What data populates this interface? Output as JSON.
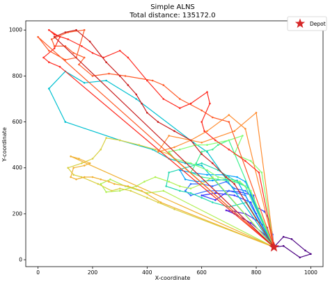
{
  "chart_data": {
    "type": "line",
    "title": "Simple ALNS",
    "subtitle": "Total distance: 135172.0",
    "xlabel": "X-coordinate",
    "ylabel": "Y-coordinate",
    "xlim": [
      -45,
      1045
    ],
    "ylim": [
      -30,
      1040
    ],
    "xticks": [
      0,
      200,
      400,
      600,
      800,
      1000
    ],
    "yticks": [
      0,
      200,
      400,
      600,
      800,
      1000
    ],
    "grid": false,
    "legend": {
      "placement": "top-right",
      "entries": [
        {
          "label": "Depot",
          "marker": "star",
          "color": "#d62728"
        }
      ]
    },
    "depot": {
      "x": 865,
      "y": 55,
      "color": "#d62728"
    },
    "series": [
      {
        "color": "#4b0082",
        "points": [
          [
            865,
            55
          ],
          [
            900,
            100
          ],
          [
            930,
            90
          ],
          [
            980,
            40
          ],
          [
            1000,
            25
          ],
          [
            960,
            10
          ],
          [
            900,
            60
          ],
          [
            865,
            55
          ]
        ]
      },
      {
        "color": "#5a1fd6",
        "points": [
          [
            865,
            55
          ],
          [
            840,
            140
          ],
          [
            790,
            180
          ],
          [
            760,
            200
          ],
          [
            720,
            210
          ],
          [
            690,
            215
          ],
          [
            720,
            200
          ],
          [
            780,
            160
          ],
          [
            830,
            110
          ],
          [
            865,
            55
          ]
        ]
      },
      {
        "color": "#3232ff",
        "points": [
          [
            865,
            55
          ],
          [
            860,
            110
          ],
          [
            850,
            170
          ],
          [
            830,
            210
          ],
          [
            800,
            230
          ],
          [
            790,
            280
          ],
          [
            740,
            295
          ],
          [
            700,
            300
          ],
          [
            650,
            260
          ],
          [
            600,
            280
          ],
          [
            650,
            290
          ],
          [
            720,
            280
          ],
          [
            780,
            250
          ],
          [
            800,
            200
          ],
          [
            865,
            55
          ]
        ]
      },
      {
        "color": "#2a6cff",
        "points": [
          [
            865,
            55
          ],
          [
            780,
            280
          ],
          [
            760,
            300
          ],
          [
            720,
            310
          ],
          [
            690,
            340
          ],
          [
            640,
            320
          ],
          [
            600,
            330
          ],
          [
            560,
            330
          ],
          [
            540,
            300
          ],
          [
            560,
            280
          ],
          [
            620,
            300
          ],
          [
            700,
            300
          ],
          [
            760,
            280
          ],
          [
            865,
            55
          ]
        ]
      },
      {
        "color": "#00a0ff",
        "points": [
          [
            865,
            55
          ],
          [
            760,
            340
          ],
          [
            730,
            360
          ],
          [
            680,
            370
          ],
          [
            620,
            370
          ],
          [
            560,
            380
          ],
          [
            520,
            390
          ],
          [
            540,
            350
          ],
          [
            580,
            340
          ],
          [
            640,
            345
          ],
          [
            700,
            350
          ],
          [
            730,
            345
          ],
          [
            865,
            55
          ]
        ]
      },
      {
        "color": "#00c0d0",
        "points": [
          [
            865,
            55
          ],
          [
            620,
            470
          ],
          [
            570,
            510
          ],
          [
            360,
            700
          ],
          [
            250,
            780
          ],
          [
            170,
            770
          ],
          [
            100,
            820
          ],
          [
            40,
            745
          ],
          [
            100,
            600
          ],
          [
            300,
            520
          ],
          [
            420,
            480
          ],
          [
            480,
            440
          ],
          [
            540,
            420
          ],
          [
            600,
            410
          ],
          [
            865,
            55
          ]
        ]
      },
      {
        "color": "#20d8b0",
        "points": [
          [
            865,
            55
          ],
          [
            760,
            320
          ],
          [
            700,
            360
          ],
          [
            660,
            390
          ],
          [
            600,
            420
          ],
          [
            540,
            400
          ],
          [
            480,
            380
          ],
          [
            470,
            320
          ],
          [
            520,
            300
          ],
          [
            560,
            290
          ],
          [
            600,
            270
          ],
          [
            640,
            250
          ],
          [
            700,
            230
          ],
          [
            765,
            250
          ],
          [
            865,
            55
          ]
        ]
      },
      {
        "color": "#40f090",
        "points": [
          [
            865,
            55
          ],
          [
            700,
            520
          ],
          [
            660,
            500
          ],
          [
            640,
            480
          ],
          [
            600,
            470
          ],
          [
            580,
            420
          ],
          [
            560,
            380
          ],
          [
            600,
            360
          ],
          [
            660,
            350
          ],
          [
            720,
            340
          ],
          [
            760,
            320
          ],
          [
            865,
            55
          ]
        ]
      },
      {
        "color": "#80ff70",
        "points": [
          [
            865,
            55
          ],
          [
            780,
            300
          ],
          [
            740,
            340
          ],
          [
            660,
            360
          ],
          [
            620,
            390
          ],
          [
            560,
            420
          ],
          [
            500,
            440
          ],
          [
            480,
            470
          ],
          [
            520,
            480
          ],
          [
            580,
            500
          ],
          [
            620,
            500
          ],
          [
            700,
            520
          ],
          [
            750,
            540
          ],
          [
            720,
            460
          ],
          [
            780,
            430
          ],
          [
            820,
            380
          ],
          [
            865,
            55
          ]
        ]
      },
      {
        "color": "#b0f050",
        "points": [
          [
            865,
            55
          ],
          [
            640,
            360
          ],
          [
            600,
            330
          ],
          [
            560,
            310
          ],
          [
            520,
            320
          ],
          [
            480,
            340
          ],
          [
            430,
            360
          ],
          [
            390,
            340
          ],
          [
            360,
            320
          ],
          [
            300,
            300
          ],
          [
            250,
            295
          ],
          [
            230,
            330
          ],
          [
            265,
            350
          ],
          [
            320,
            320
          ],
          [
            400,
            290
          ],
          [
            460,
            300
          ],
          [
            865,
            55
          ]
        ]
      },
      {
        "color": "#d8d040",
        "points": [
          [
            865,
            55
          ],
          [
            500,
            220
          ],
          [
            440,
            250
          ],
          [
            400,
            270
          ],
          [
            340,
            300
          ],
          [
            300,
            310
          ],
          [
            270,
            300
          ],
          [
            220,
            330
          ],
          [
            160,
            360
          ],
          [
            130,
            370
          ],
          [
            110,
            400
          ],
          [
            160,
            420
          ],
          [
            200,
            440
          ],
          [
            230,
            480
          ],
          [
            250,
            530
          ],
          [
            300,
            520
          ],
          [
            370,
            500
          ],
          [
            430,
            480
          ],
          [
            480,
            460
          ],
          [
            865,
            55
          ]
        ]
      },
      {
        "color": "#f0b030",
        "points": [
          [
            865,
            55
          ],
          [
            450,
            250
          ],
          [
            380,
            300
          ],
          [
            330,
            320
          ],
          [
            280,
            330
          ],
          [
            260,
            340
          ],
          [
            230,
            350
          ],
          [
            200,
            360
          ],
          [
            170,
            360
          ],
          [
            140,
            350
          ],
          [
            120,
            360
          ],
          [
            130,
            400
          ],
          [
            170,
            410
          ],
          [
            190,
            420
          ],
          [
            150,
            440
          ],
          [
            120,
            450
          ],
          [
            865,
            55
          ]
        ]
      },
      {
        "color": "#ff8c30",
        "points": [
          [
            865,
            55
          ],
          [
            760,
            570
          ],
          [
            700,
            630
          ],
          [
            620,
            560
          ],
          [
            560,
            520
          ],
          [
            500,
            490
          ],
          [
            440,
            470
          ],
          [
            480,
            540
          ],
          [
            600,
            510
          ],
          [
            720,
            560
          ],
          [
            800,
            640
          ],
          [
            865,
            55
          ]
        ]
      },
      {
        "color": "#ff5a28",
        "points": [
          [
            865,
            55
          ],
          [
            700,
            600
          ],
          [
            640,
            620
          ],
          [
            600,
            650
          ],
          [
            520,
            700
          ],
          [
            460,
            760
          ],
          [
            420,
            780
          ],
          [
            320,
            800
          ],
          [
            260,
            810
          ],
          [
            200,
            800
          ],
          [
            150,
            850
          ],
          [
            170,
            880
          ],
          [
            130,
            900
          ],
          [
            100,
            930
          ],
          [
            60,
            930
          ],
          [
            50,
            960
          ],
          [
            110,
            990
          ],
          [
            170,
            1000
          ],
          [
            140,
            880
          ],
          [
            100,
            870
          ],
          [
            40,
            910
          ],
          [
            0,
            970
          ],
          [
            865,
            55
          ]
        ]
      },
      {
        "color": "#ff2a20",
        "points": [
          [
            865,
            55
          ],
          [
            810,
            380
          ],
          [
            760,
            430
          ],
          [
            700,
            480
          ],
          [
            650,
            520
          ],
          [
            610,
            560
          ],
          [
            600,
            600
          ],
          [
            630,
            680
          ],
          [
            620,
            730
          ],
          [
            560,
            680
          ],
          [
            520,
            660
          ],
          [
            460,
            700
          ],
          [
            400,
            780
          ],
          [
            330,
            880
          ],
          [
            300,
            910
          ],
          [
            240,
            880
          ],
          [
            200,
            900
          ],
          [
            160,
            930
          ],
          [
            110,
            960
          ],
          [
            60,
            980
          ],
          [
            40,
            1000
          ],
          [
            80,
            970
          ],
          [
            60,
            920
          ],
          [
            20,
            880
          ],
          [
            40,
            860
          ],
          [
            80,
            840
          ],
          [
            865,
            55
          ]
        ]
      },
      {
        "color": "#c81e1e",
        "points": [
          [
            865,
            55
          ],
          [
            720,
            330
          ],
          [
            690,
            360
          ],
          [
            640,
            420
          ],
          [
            600,
            460
          ],
          [
            560,
            520
          ],
          [
            500,
            560
          ],
          [
            440,
            600
          ],
          [
            400,
            640
          ],
          [
            380,
            680
          ],
          [
            360,
            720
          ],
          [
            330,
            760
          ],
          [
            300,
            800
          ],
          [
            250,
            860
          ],
          [
            190,
            950
          ],
          [
            140,
            1000
          ],
          [
            100,
            990
          ],
          [
            60,
            970
          ],
          [
            865,
            55
          ]
        ]
      }
    ]
  }
}
